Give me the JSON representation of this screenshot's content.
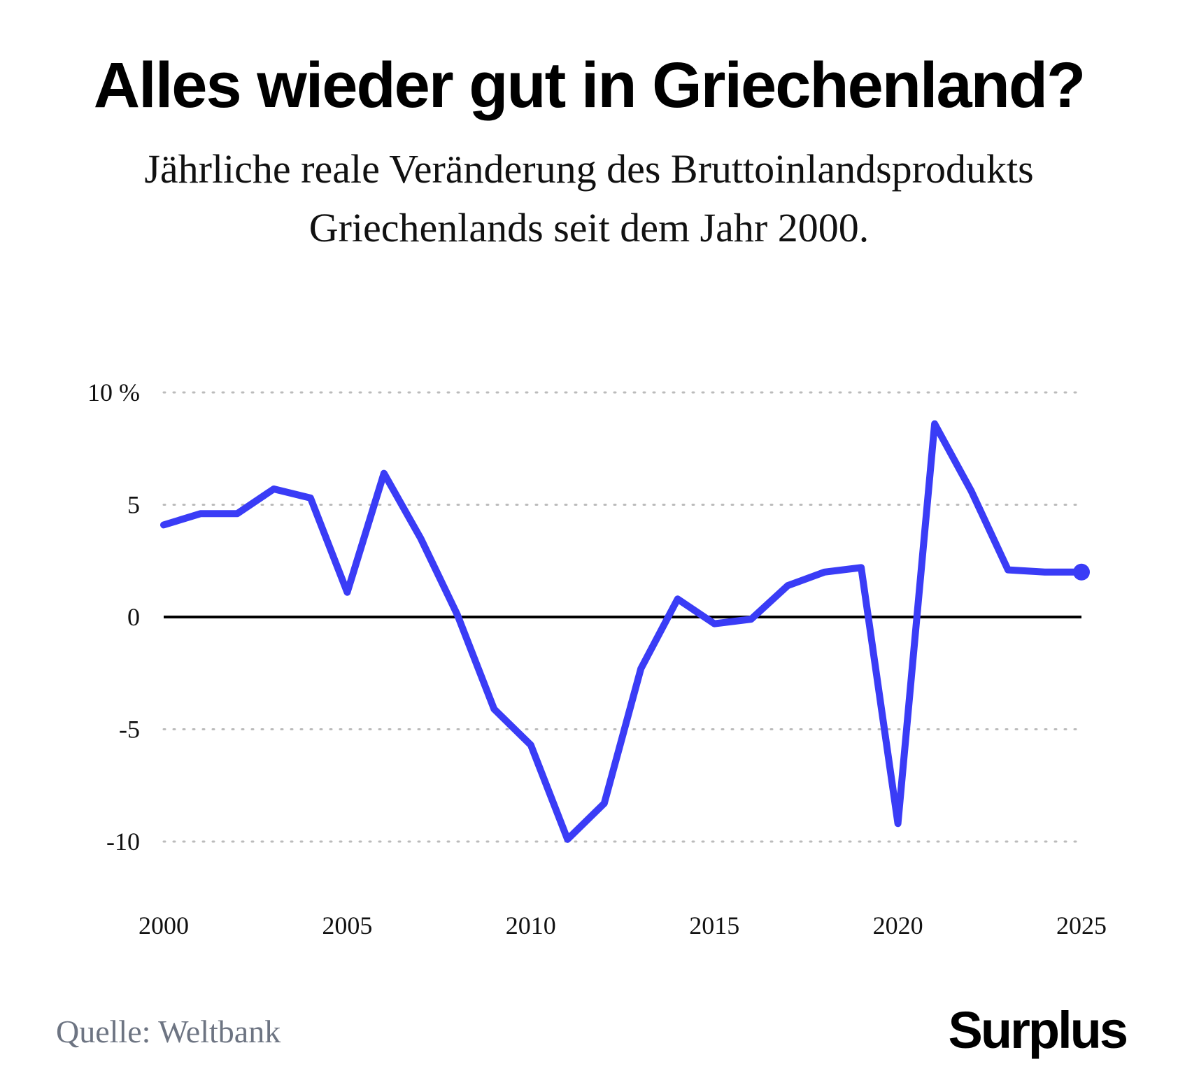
{
  "chart_data": {
    "type": "line",
    "title": "Alles wieder gut in Griechenland?",
    "subtitle": "Jährliche reale Veränderung des Bruttoinlandsprodukts Griechenlands seit dem Jahr 2000.",
    "xlabel": "",
    "ylabel": "",
    "x": [
      2000,
      2001,
      2002,
      2003,
      2004,
      2005,
      2006,
      2007,
      2008,
      2009,
      2010,
      2011,
      2012,
      2013,
      2014,
      2015,
      2016,
      2017,
      2018,
      2019,
      2020,
      2021,
      2022,
      2023,
      2024,
      2025
    ],
    "series": [
      {
        "values": [
          4.1,
          4.6,
          4.6,
          5.7,
          5.3,
          1.1,
          6.4,
          3.5,
          0.1,
          -4.1,
          -5.7,
          -9.9,
          -8.3,
          -2.3,
          0.8,
          -0.3,
          -0.1,
          1.4,
          2.0,
          2.2,
          -9.2,
          8.6,
          5.6,
          2.1,
          2.0,
          2.0
        ],
        "color": "#3a3cf6"
      }
    ],
    "xlim": [
      2000,
      2025
    ],
    "ylim": [
      -10,
      10
    ],
    "x_ticks": [
      "2000",
      "2005",
      "2010",
      "2015",
      "2020",
      "2025"
    ],
    "y_ticks": [
      {
        "value": 10,
        "label": "10 %"
      },
      {
        "value": 5,
        "label": "5"
      },
      {
        "value": 0,
        "label": "0"
      },
      {
        "value": -5,
        "label": "-5"
      },
      {
        "value": -10,
        "label": "-10"
      }
    ],
    "grid": "dotted horizontal",
    "zero_line_color": "#000000",
    "grid_color": "#bbbbbb",
    "endpoint_marker": true
  },
  "source": "Quelle: Weltbank",
  "brand": "Surplus"
}
